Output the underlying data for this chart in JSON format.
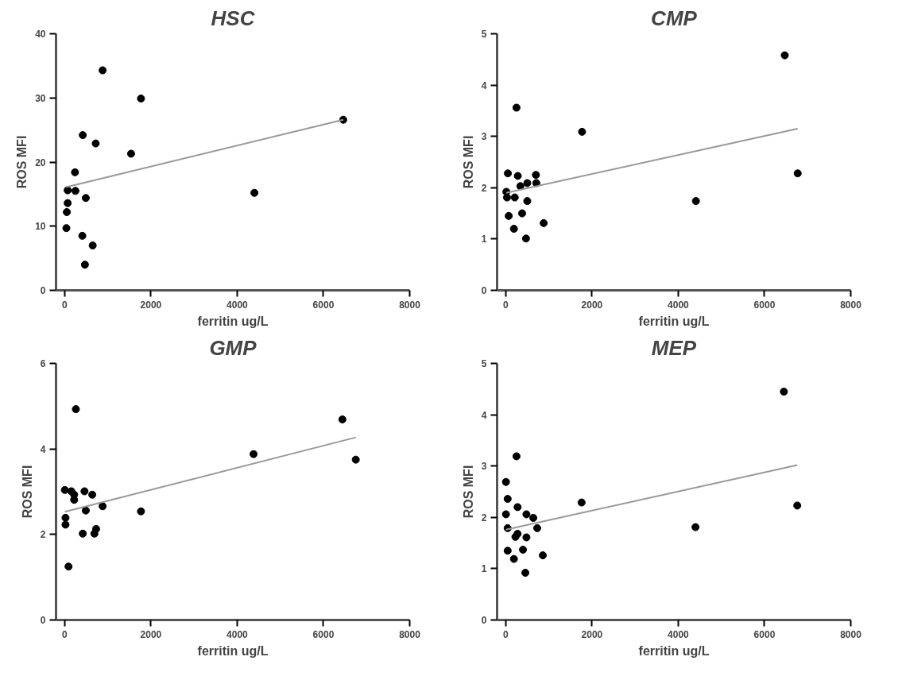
{
  "chart_data": [
    {
      "type": "scatter",
      "title": "HSC",
      "xlabel": "ferritin ug/L",
      "ylabel": "ROS MFI",
      "xlim": [
        -200,
        8000
      ],
      "ylim": [
        0,
        40
      ],
      "xticks": [
        0,
        2000,
        4000,
        6000,
        8000
      ],
      "yticks": [
        0,
        10,
        20,
        30,
        40
      ],
      "grid": false,
      "series": [
        {
          "marker": "circle",
          "color": "#000000",
          "x": [
            880,
            1770,
            6460,
            420,
            720,
            1540,
            240,
            70,
            250,
            4400,
            490,
            70,
            50,
            40,
            410,
            650,
            470
          ],
          "values": [
            34.3,
            29.9,
            26.6,
            24.2,
            22.9,
            21.3,
            18.4,
            15.6,
            15.5,
            15.2,
            14.4,
            13.6,
            12.2,
            9.7,
            8.5,
            7.0,
            4.0
          ]
        },
        {
          "type": "line",
          "color": "#999999",
          "x": [
            40,
            6460
          ],
          "values": [
            16.1,
            26.6
          ]
        }
      ]
    },
    {
      "type": "scatter",
      "title": "CMP",
      "xlabel": "ferritin ug/L",
      "ylabel": "ROS MFI",
      "xlim": [
        -200,
        8000
      ],
      "ylim": [
        0,
        5
      ],
      "xticks": [
        0,
        2000,
        4000,
        6000,
        8000
      ],
      "yticks": [
        0,
        1,
        2,
        3,
        4,
        5
      ],
      "grid": false,
      "series": [
        {
          "marker": "circle",
          "color": "#000000",
          "x": [
            6470,
            250,
            1770,
            6770,
            50,
            280,
            700,
            710,
            500,
            340,
            15,
            30,
            210,
            500,
            4410,
            70,
            380,
            880,
            190,
            470
          ],
          "values": [
            4.58,
            3.56,
            3.09,
            2.28,
            2.28,
            2.23,
            2.25,
            2.09,
            2.09,
            2.03,
            1.92,
            1.81,
            1.81,
            1.74,
            1.74,
            1.45,
            1.5,
            1.31,
            1.2,
            1.01
          ]
        },
        {
          "type": "line",
          "color": "#999999",
          "x": [
            15,
            6770
          ],
          "values": [
            1.9,
            3.15
          ]
        }
      ]
    },
    {
      "type": "scatter",
      "title": "GMP",
      "xlabel": "ferritin ug/L",
      "ylabel": "ROS MFI",
      "xlim": [
        -200,
        8000
      ],
      "ylim": [
        0,
        6
      ],
      "xticks": [
        0,
        2000,
        4000,
        6000,
        8000
      ],
      "yticks": [
        0,
        2,
        4,
        6
      ],
      "grid": false,
      "series": [
        {
          "marker": "circle",
          "color": "#000000",
          "x": [
            260,
            6440,
            4380,
            6750,
            5,
            155,
            460,
            640,
            220,
            220,
            880,
            490,
            1770,
            20,
            20,
            730,
            420,
            690,
            90
          ],
          "values": [
            4.93,
            4.69,
            3.88,
            3.75,
            3.04,
            3.01,
            3.01,
            2.93,
            2.93,
            2.81,
            2.66,
            2.56,
            2.54,
            2.39,
            2.23,
            2.13,
            2.02,
            2.02,
            1.25
          ]
        },
        {
          "type": "line",
          "color": "#999999",
          "x": [
            5,
            6750
          ],
          "values": [
            2.53,
            4.27
          ]
        }
      ]
    },
    {
      "type": "scatter",
      "title": "MEP",
      "xlabel": "ferritin ug/L",
      "ylabel": "ROS MFI",
      "xlim": [
        -200,
        8000
      ],
      "ylim": [
        0,
        5
      ],
      "xticks": [
        0,
        2000,
        4000,
        6000,
        8000
      ],
      "yticks": [
        0,
        1,
        2,
        3,
        4,
        5
      ],
      "grid": false,
      "series": [
        {
          "marker": "circle",
          "color": "#000000",
          "x": [
            6450,
            250,
            5,
            45,
            1760,
            6760,
            275,
            5,
            480,
            640,
            730,
            45,
            4400,
            275,
            225,
            480,
            400,
            45,
            190,
            860,
            455
          ],
          "values": [
            4.45,
            3.19,
            2.69,
            2.36,
            2.29,
            2.23,
            2.2,
            2.06,
            2.06,
            1.99,
            1.79,
            1.79,
            1.81,
            1.68,
            1.62,
            1.61,
            1.37,
            1.35,
            1.19,
            1.26,
            0.92
          ]
        },
        {
          "type": "line",
          "color": "#999999",
          "x": [
            5,
            6760
          ],
          "values": [
            1.76,
            3.02
          ]
        }
      ]
    }
  ]
}
